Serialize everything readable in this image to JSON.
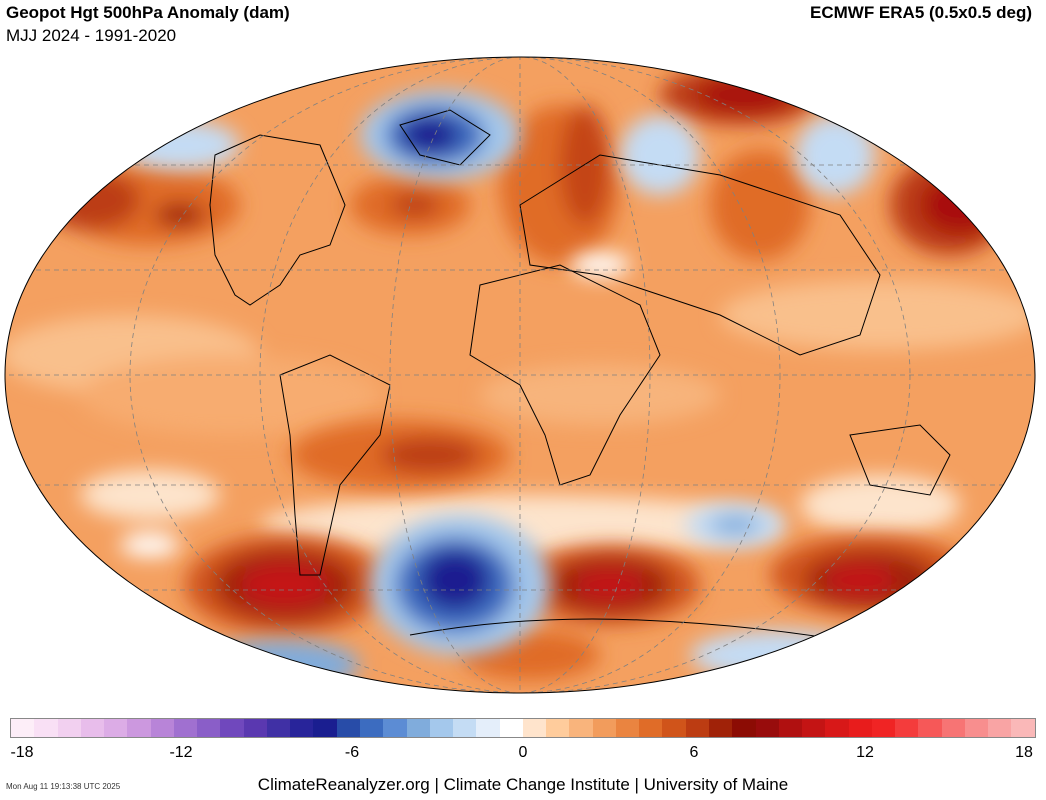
{
  "header": {
    "title": "Geopot Hgt 500hPa Anomaly (dam)",
    "subtitle": "MJJ 2024 - 1991-2020",
    "dataset": "ECMWF ERA5 (0.5x0.5 deg)"
  },
  "map": {
    "projection": "robinson",
    "ocean_color": "#f4a060",
    "land_outline_color": "#000000",
    "graticule": "dashed"
  },
  "anomaly_regions": [
    {
      "area": "Greenland",
      "value": -4,
      "color": "#1a2aa0"
    },
    {
      "area": "Southeast Pacific / Drake Passage",
      "value": -4,
      "color": "#1a2aa0"
    },
    {
      "area": "South Pacific",
      "value": 7,
      "color": "#b41010"
    },
    {
      "area": "South Atlantic",
      "value": 7,
      "color": "#b41010"
    },
    {
      "area": "Southern Indian Ocean",
      "value": 7,
      "color": "#b41010"
    },
    {
      "area": "North Pacific",
      "value": 6,
      "color": "#c01818"
    },
    {
      "area": "Siberia",
      "value": 7,
      "color": "#a80808"
    }
  ],
  "colorbar": {
    "min": -18,
    "max": 18,
    "tick_labels": [
      "-18",
      "-12",
      "-6",
      "0",
      "6",
      "12",
      "18"
    ],
    "colors": [
      "#fdeef8",
      "#f9e0f5",
      "#f2d0f0",
      "#e8bdeb",
      "#dcace6",
      "#cc98df",
      "#b884d8",
      "#a070d0",
      "#8a5ec8",
      "#7048bd",
      "#5a38b0",
      "#4030a5",
      "#28249a",
      "#1a1e90",
      "#284ca8",
      "#3c6cc0",
      "#5c8cd4",
      "#80acdc",
      "#a4c8ec",
      "#c4dcf4",
      "#e4eefa",
      "#ffffff",
      "#ffe4cc",
      "#ffcc9c",
      "#f9b47c",
      "#f29c5c",
      "#ea8440",
      "#e06c28",
      "#d0541a",
      "#bc3c12",
      "#a02208",
      "#8c0c04",
      "#980c0c",
      "#b01010",
      "#c41414",
      "#d81818",
      "#e81c1c",
      "#f02424",
      "#f43c3c",
      "#f65858",
      "#f77474",
      "#f88e8e",
      "#f9a4a4",
      "#fab8b8"
    ]
  },
  "footer": {
    "timestamp": "Mon Aug 11 19:13:38 UTC 2025",
    "credit": "ClimateReanalyzer.org | Climate Change Institute | University of Maine"
  }
}
